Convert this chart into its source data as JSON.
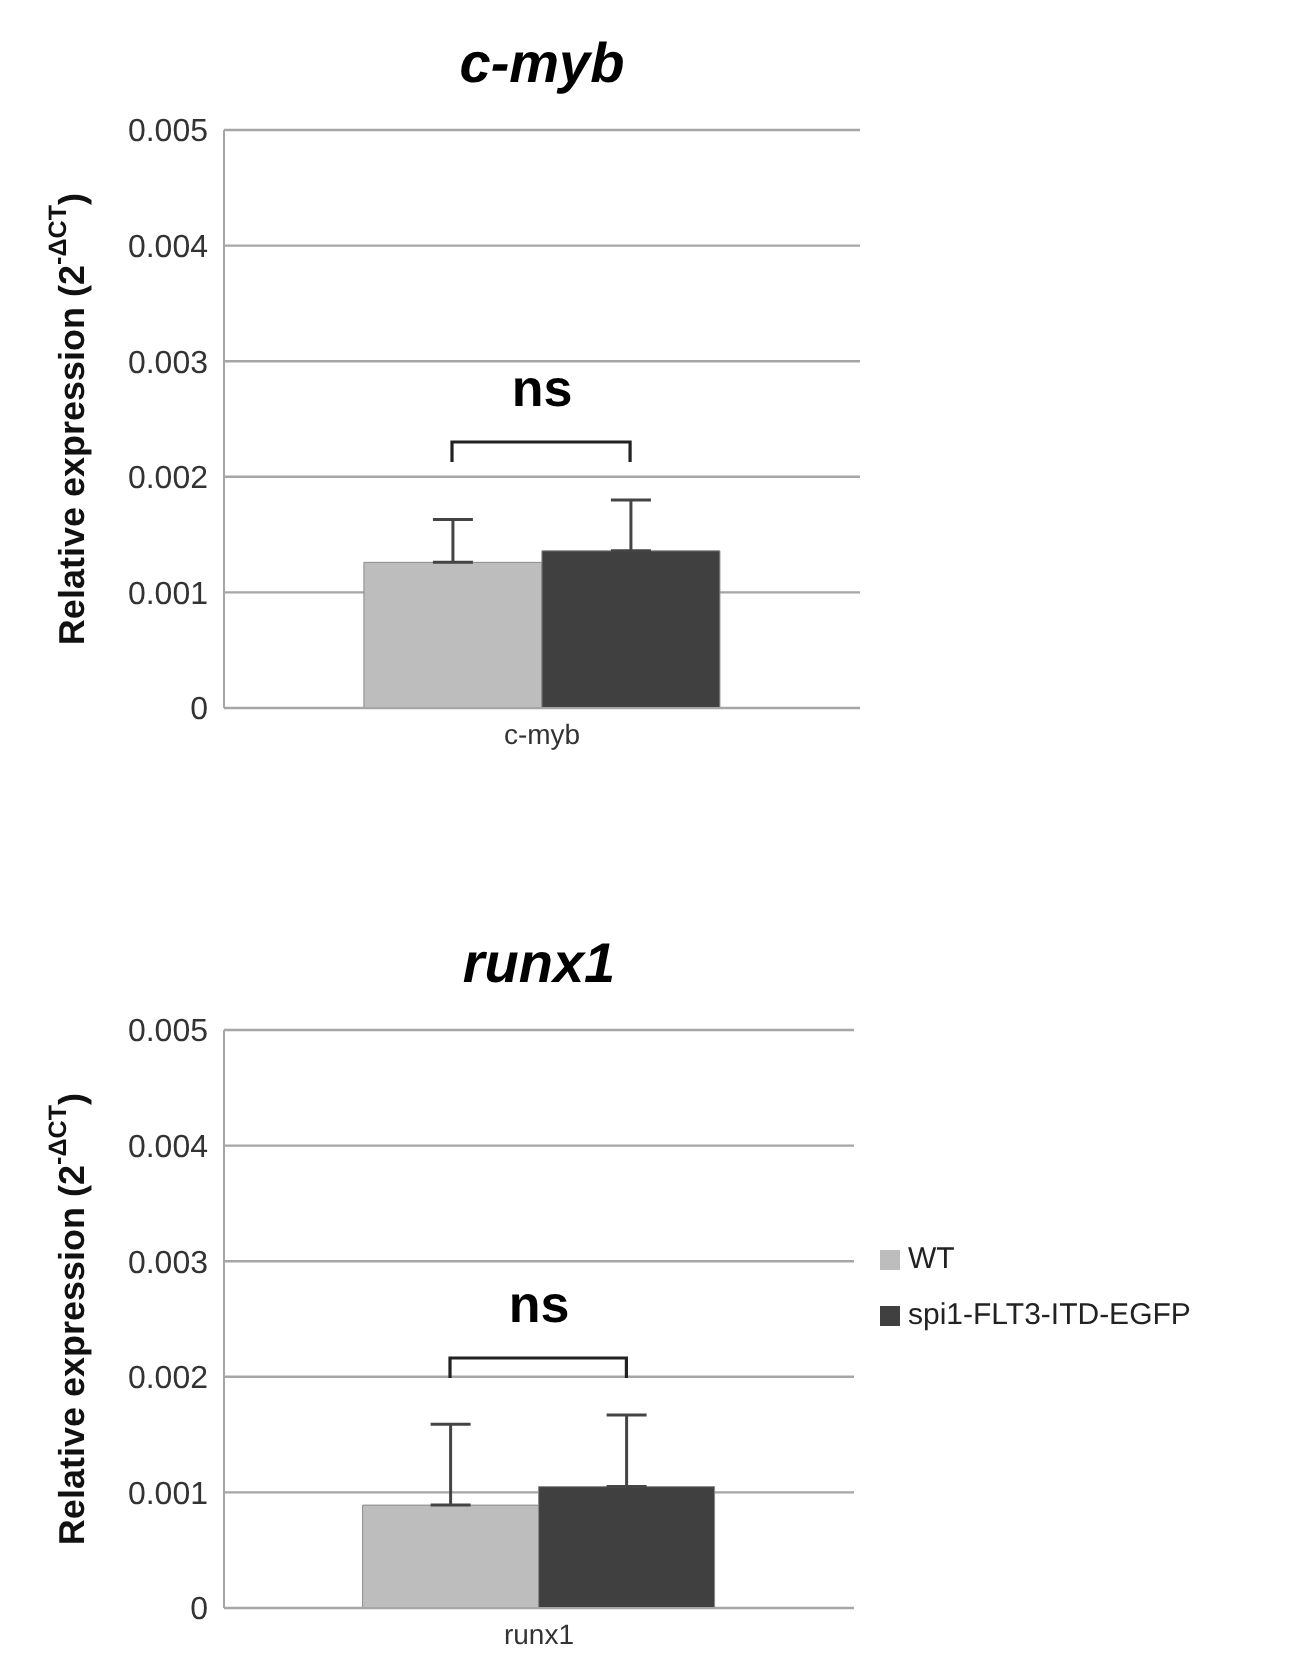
{
  "chart_data": [
    {
      "type": "bar",
      "title": "c-myb",
      "ylabel": "Relative expression (2$^{-ΔCT}$)",
      "categories": [
        "c-myb"
      ],
      "series": [
        {
          "color": "#bdbdbd",
          "values": [
            0.00126
          ],
          "errors": [
            [
              0.00126,
              0.00163
            ]
          ]
        },
        {
          "color": "#404040",
          "values": [
            0.00136
          ],
          "errors": [
            [
              0.00136,
              0.0018
            ]
          ]
        }
      ],
      "ylim": [
        0,
        0.005
      ],
      "yticks": [
        0,
        0.001,
        0.002,
        0.003,
        0.004,
        0.005
      ],
      "grid": "y",
      "annotations": [
        "ns"
      ]
    },
    {
      "type": "bar",
      "title": "runx1",
      "ylabel": "Relative expression (2$^{-ΔCT}$)",
      "categories": [
        "runx1"
      ],
      "series": [
        {
          "name": "WT",
          "color": "#bdbdbd",
          "values": [
            0.00089
          ],
          "errors": [
            [
              0.00089,
              0.00159
            ]
          ]
        },
        {
          "name": "spi1-FLT3-ITD-EGFP",
          "color": "#404040",
          "values": [
            0.00105
          ],
          "errors": [
            [
              0.00105,
              0.00167
            ]
          ]
        }
      ],
      "ylim": [
        0,
        0.005
      ],
      "yticks": [
        0,
        0.001,
        0.002,
        0.003,
        0.004,
        0.005
      ],
      "grid": "y",
      "legend": "right",
      "annotations": [
        "ns"
      ]
    }
  ]
}
